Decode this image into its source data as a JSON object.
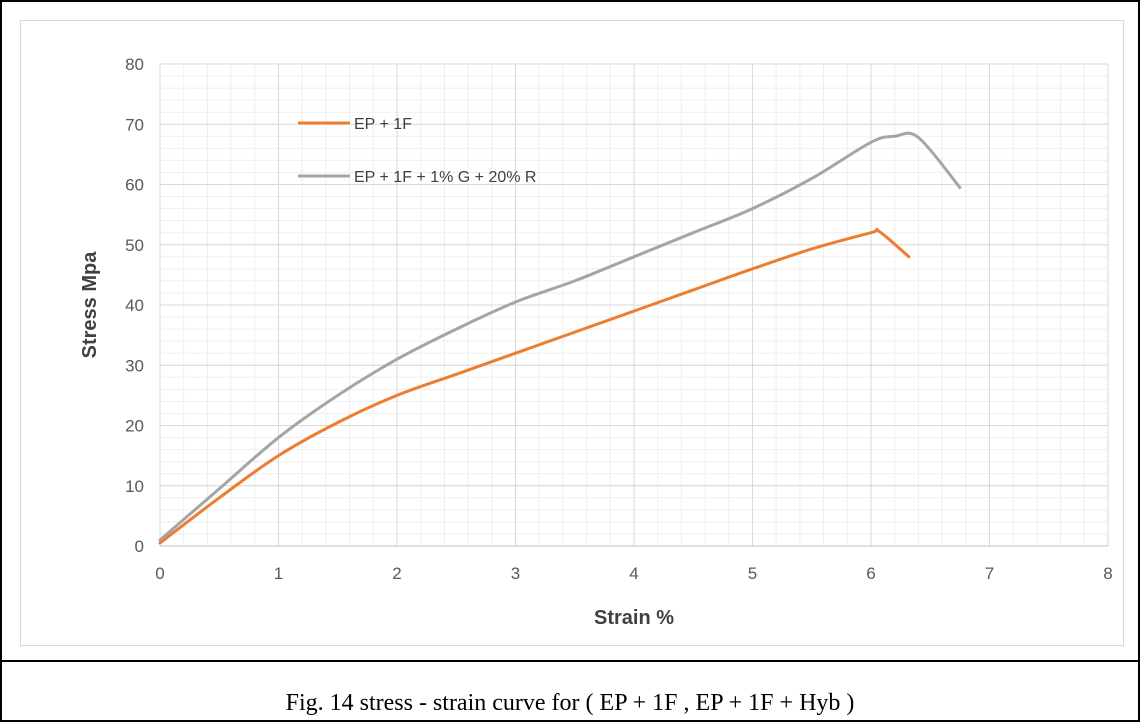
{
  "caption": "Fig. 14 stress - strain curve for ( EP + 1F , EP + 1F + Hyb )",
  "chart_data": {
    "type": "line",
    "title": "",
    "xlabel": "Strain %",
    "ylabel": "Stress  Mpa",
    "xlim": [
      0,
      8
    ],
    "ylim": [
      0,
      80
    ],
    "xticks": [
      0,
      1,
      2,
      3,
      4,
      5,
      6,
      7,
      8
    ],
    "yticks": [
      0,
      10,
      20,
      30,
      40,
      50,
      60,
      70,
      80
    ],
    "grid": true,
    "legend_placement": "top-left",
    "series": [
      {
        "name": "EP + 1F",
        "color": "#ED7D31",
        "x": [
          0,
          0.5,
          1,
          1.5,
          2,
          2.5,
          3,
          3.5,
          4,
          4.5,
          5,
          5.5,
          6,
          6.07,
          6.32
        ],
        "y": [
          0.5,
          8,
          15,
          20.5,
          25,
          28.5,
          32,
          35.5,
          39,
          42.5,
          46,
          49.3,
          52,
          52.2,
          48
        ]
      },
      {
        "name": "EP + 1F + 1% G + 20% R",
        "color": "#A5A5A5",
        "x": [
          0,
          0.5,
          1,
          1.5,
          2,
          2.5,
          3,
          3.5,
          4,
          4.5,
          5,
          5.5,
          6,
          6.2,
          6.4,
          6.75
        ],
        "y": [
          1,
          9.5,
          18,
          25,
          31,
          36,
          40.5,
          44,
          48,
          52,
          56,
          61,
          67,
          68,
          67.8,
          59.5
        ]
      }
    ]
  }
}
